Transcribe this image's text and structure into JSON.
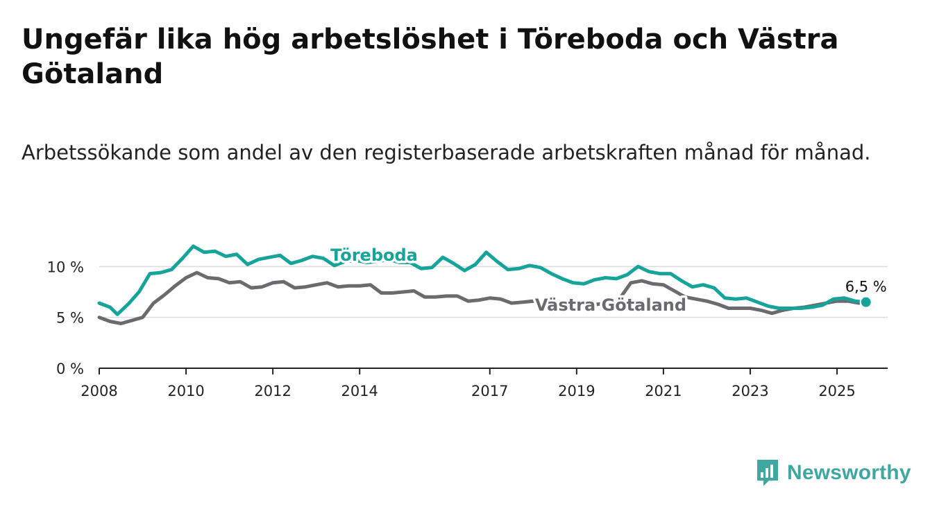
{
  "title": "Ungefär lika hög arbetslöshet i Töreboda och Västra Götaland",
  "subtitle": "Arbetssökande som andel av den registerbaserade arbetskraften månad för månad.",
  "brand": {
    "name": "Newsworthy",
    "color": "#3fa79f"
  },
  "chart_data": {
    "type": "line",
    "title": "Ungefär lika hög arbetslöshet i Töreboda och Västra Götaland",
    "subtitle": "Arbetssökande som andel av den registerbaserade arbetskraften månad för månad.",
    "xlabel": "",
    "ylabel": "",
    "x_ticks": [
      "2008",
      "2010",
      "2012",
      "2014",
      "2017",
      "2019",
      "2021",
      "2023",
      "2025"
    ],
    "y_ticks": [
      "0 %",
      "5 %",
      "10 %"
    ],
    "xlim": [
      "2008-01",
      "2026-03"
    ],
    "ylim": [
      0,
      12
    ],
    "grid": "horizontal",
    "legend": "inline labels",
    "end_label": "6,5 %",
    "series": [
      {
        "name": "Töreboda",
        "color": "#16a39a",
        "points": [
          [
            "2008-01",
            6.4
          ],
          [
            "2008-04",
            6.0
          ],
          [
            "2008-06",
            5.3
          ],
          [
            "2008-09",
            6.3
          ],
          [
            "2008-12",
            7.5
          ],
          [
            "2009-03",
            9.3
          ],
          [
            "2009-06",
            9.4
          ],
          [
            "2009-09",
            9.7
          ],
          [
            "2009-12",
            10.8
          ],
          [
            "2010-03",
            12.0
          ],
          [
            "2010-06",
            11.4
          ],
          [
            "2010-09",
            11.5
          ],
          [
            "2010-12",
            11.0
          ],
          [
            "2011-03",
            11.2
          ],
          [
            "2011-06",
            10.2
          ],
          [
            "2011-09",
            10.7
          ],
          [
            "2011-12",
            10.9
          ],
          [
            "2012-03",
            11.1
          ],
          [
            "2012-06",
            10.3
          ],
          [
            "2012-09",
            10.6
          ],
          [
            "2012-12",
            11.0
          ],
          [
            "2013-03",
            10.8
          ],
          [
            "2013-06",
            10.1
          ],
          [
            "2013-09",
            10.5
          ],
          [
            "2013-12",
            10.6
          ],
          [
            "2014-03",
            10.4
          ],
          [
            "2014-06",
            10.5
          ],
          [
            "2014-09",
            10.7
          ],
          [
            "2014-12",
            10.4
          ],
          [
            "2015-03",
            10.4
          ],
          [
            "2015-06",
            9.8
          ],
          [
            "2015-09",
            9.9
          ],
          [
            "2015-12",
            10.9
          ],
          [
            "2016-03",
            10.3
          ],
          [
            "2016-06",
            9.6
          ],
          [
            "2016-09",
            10.2
          ],
          [
            "2016-12",
            11.4
          ],
          [
            "2017-03",
            10.5
          ],
          [
            "2017-06",
            9.7
          ],
          [
            "2017-09",
            9.8
          ],
          [
            "2017-12",
            10.1
          ],
          [
            "2018-03",
            9.9
          ],
          [
            "2018-06",
            9.3
          ],
          [
            "2018-09",
            8.8
          ],
          [
            "2018-12",
            8.4
          ],
          [
            "2019-03",
            8.3
          ],
          [
            "2019-06",
            8.7
          ],
          [
            "2019-09",
            8.9
          ],
          [
            "2019-12",
            8.8
          ],
          [
            "2020-03",
            9.2
          ],
          [
            "2020-06",
            10.0
          ],
          [
            "2020-09",
            9.5
          ],
          [
            "2020-12",
            9.3
          ],
          [
            "2021-03",
            9.3
          ],
          [
            "2021-06",
            8.6
          ],
          [
            "2021-09",
            8.0
          ],
          [
            "2021-12",
            8.2
          ],
          [
            "2022-03",
            7.9
          ],
          [
            "2022-06",
            6.9
          ],
          [
            "2022-09",
            6.8
          ],
          [
            "2022-12",
            6.9
          ],
          [
            "2023-03",
            6.5
          ],
          [
            "2023-06",
            6.1
          ],
          [
            "2023-09",
            5.9
          ],
          [
            "2023-12",
            5.9
          ],
          [
            "2024-03",
            5.9
          ],
          [
            "2024-06",
            6.0
          ],
          [
            "2024-09",
            6.2
          ],
          [
            "2024-12",
            6.8
          ],
          [
            "2025-03",
            6.9
          ],
          [
            "2025-06",
            6.6
          ],
          [
            "2025-09",
            6.5
          ]
        ]
      },
      {
        "name": "Västra Götaland",
        "color": "#6b6b6f",
        "points": [
          [
            "2008-01",
            5.0
          ],
          [
            "2008-04",
            4.6
          ],
          [
            "2008-07",
            4.4
          ],
          [
            "2008-10",
            4.7
          ],
          [
            "2009-01",
            5.0
          ],
          [
            "2009-04",
            6.4
          ],
          [
            "2009-07",
            7.2
          ],
          [
            "2009-10",
            8.1
          ],
          [
            "2010-01",
            8.9
          ],
          [
            "2010-04",
            9.4
          ],
          [
            "2010-07",
            8.9
          ],
          [
            "2010-10",
            8.8
          ],
          [
            "2011-01",
            8.4
          ],
          [
            "2011-04",
            8.5
          ],
          [
            "2011-07",
            7.9
          ],
          [
            "2011-10",
            8.0
          ],
          [
            "2012-01",
            8.4
          ],
          [
            "2012-04",
            8.5
          ],
          [
            "2012-07",
            7.9
          ],
          [
            "2012-10",
            8.0
          ],
          [
            "2013-01",
            8.2
          ],
          [
            "2013-04",
            8.4
          ],
          [
            "2013-07",
            8.0
          ],
          [
            "2013-10",
            8.1
          ],
          [
            "2014-01",
            8.1
          ],
          [
            "2014-04",
            8.2
          ],
          [
            "2014-07",
            7.4
          ],
          [
            "2014-10",
            7.4
          ],
          [
            "2015-01",
            7.5
          ],
          [
            "2015-04",
            7.6
          ],
          [
            "2015-07",
            7.0
          ],
          [
            "2015-10",
            7.0
          ],
          [
            "2016-01",
            7.1
          ],
          [
            "2016-04",
            7.1
          ],
          [
            "2016-07",
            6.6
          ],
          [
            "2016-10",
            6.7
          ],
          [
            "2017-01",
            6.9
          ],
          [
            "2017-04",
            6.8
          ],
          [
            "2017-07",
            6.4
          ],
          [
            "2017-10",
            6.5
          ],
          [
            "2018-01",
            6.6
          ],
          [
            "2018-04",
            6.5
          ],
          [
            "2018-07",
            6.2
          ],
          [
            "2018-10",
            6.1
          ],
          [
            "2019-01",
            6.1
          ],
          [
            "2019-04",
            6.2
          ],
          [
            "2019-07",
            6.3
          ],
          [
            "2019-10",
            6.4
          ],
          [
            "2020-01",
            6.9
          ],
          [
            "2020-04",
            8.4
          ],
          [
            "2020-07",
            8.6
          ],
          [
            "2020-10",
            8.3
          ],
          [
            "2021-01",
            8.2
          ],
          [
            "2021-04",
            7.6
          ],
          [
            "2021-07",
            7.0
          ],
          [
            "2021-10",
            6.8
          ],
          [
            "2022-01",
            6.6
          ],
          [
            "2022-04",
            6.3
          ],
          [
            "2022-07",
            5.9
          ],
          [
            "2022-10",
            5.9
          ],
          [
            "2023-01",
            5.9
          ],
          [
            "2023-04",
            5.7
          ],
          [
            "2023-07",
            5.4
          ],
          [
            "2023-10",
            5.7
          ],
          [
            "2024-01",
            5.9
          ],
          [
            "2024-04",
            6.0
          ],
          [
            "2024-07",
            6.2
          ],
          [
            "2024-10",
            6.4
          ],
          [
            "2025-01",
            6.6
          ],
          [
            "2025-04",
            6.6
          ],
          [
            "2025-07",
            6.4
          ]
        ]
      }
    ]
  }
}
